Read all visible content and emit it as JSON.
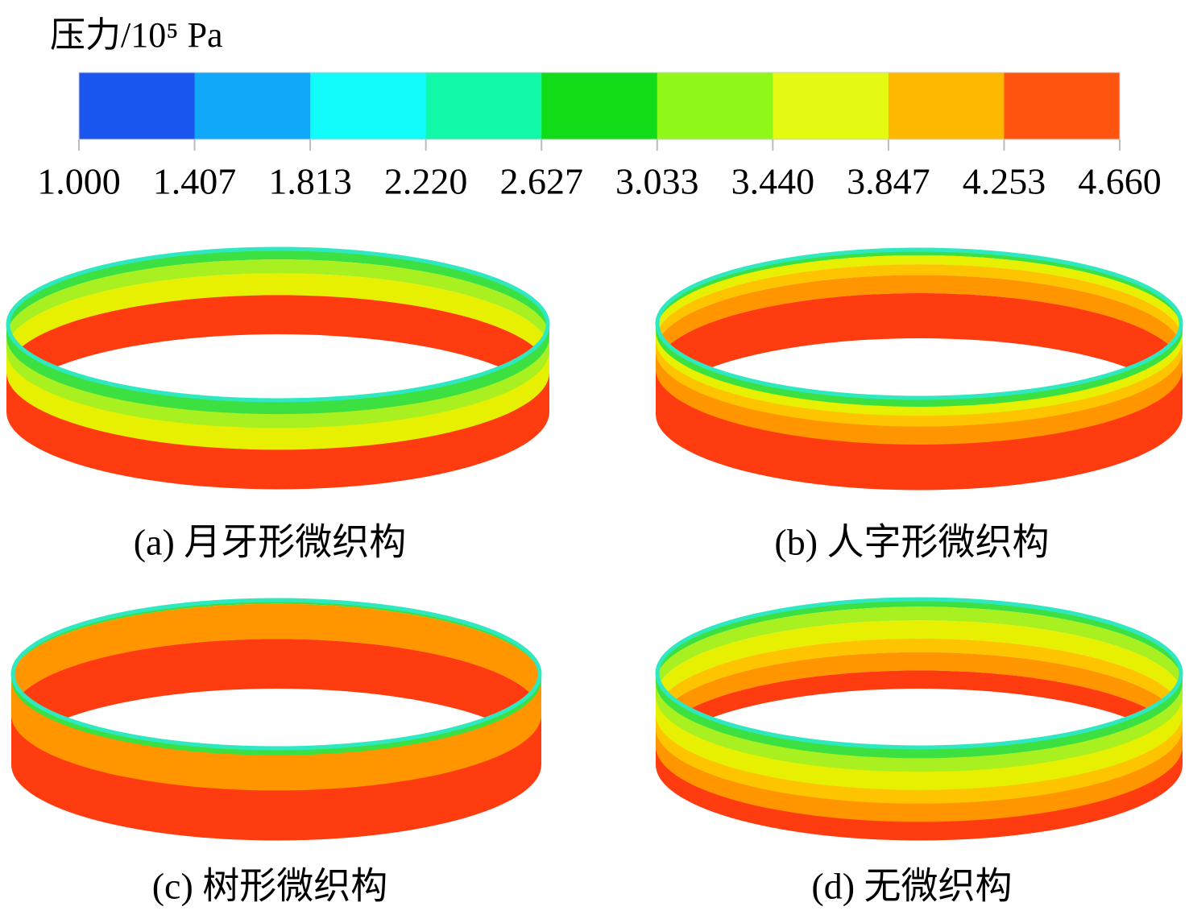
{
  "colorbar": {
    "title": "压力/10⁵ Pa",
    "colors": [
      "#1a55f0",
      "#10a8f8",
      "#10fbfa",
      "#10f8a8",
      "#10dc18",
      "#90f818",
      "#e4fa10",
      "#ffb800",
      "#ff5410"
    ],
    "ticks": [
      "1.000",
      "1.407",
      "1.813",
      "2.220",
      "2.627",
      "3.033",
      "3.440",
      "3.847",
      "4.253",
      "4.660"
    ]
  },
  "panels": [
    {
      "caption": "(a) 月牙形微织构"
    },
    {
      "caption": "(b) 人字形微织构"
    },
    {
      "caption": "(c) 树形微织构"
    },
    {
      "caption": "(d) 无微织构"
    }
  ]
}
